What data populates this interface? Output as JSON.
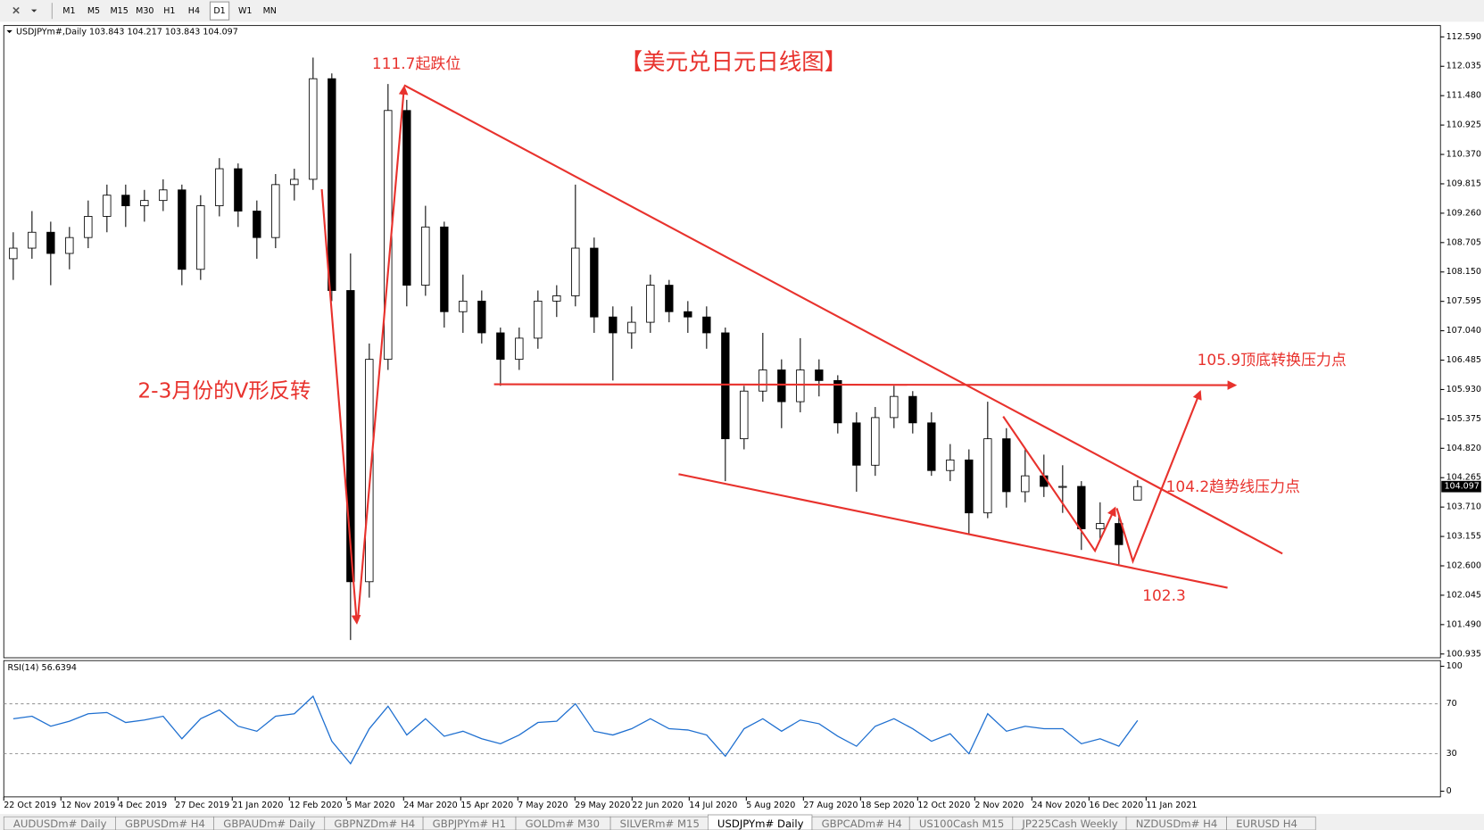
{
  "toolbar": {
    "timeframes": [
      "M1",
      "M5",
      "M15",
      "M30",
      "H1",
      "H4",
      "D1",
      "W1",
      "MN"
    ],
    "active": 6
  },
  "chart_data": {
    "type": "candlestick",
    "header": "USDJPYm#,Daily  103.843 104.217 103.843 104.097",
    "ylim": [
      100.864,
      112.804
    ],
    "yticks": [
      {
        "value": 112.59,
        "label": "112.590"
      },
      {
        "value": 112.035,
        "label": "112.035"
      },
      {
        "value": 111.48,
        "label": "111.480"
      },
      {
        "value": 110.925,
        "label": "110.925"
      },
      {
        "value": 110.37,
        "label": "110.370"
      },
      {
        "value": 109.815,
        "label": "109.815"
      },
      {
        "value": 109.26,
        "label": "109.260"
      },
      {
        "value": 108.705,
        "label": "108.705"
      },
      {
        "value": 108.15,
        "label": "108.150"
      },
      {
        "value": 107.595,
        "label": "107.595"
      },
      {
        "value": 107.04,
        "label": "107.040"
      },
      {
        "value": 106.485,
        "label": "106.485"
      },
      {
        "value": 105.93,
        "label": "105.930"
      },
      {
        "value": 105.375,
        "label": "105.375"
      },
      {
        "value": 104.82,
        "label": "104.820"
      },
      {
        "value": 104.265,
        "label": "104.265"
      },
      {
        "value": 103.71,
        "label": "103.710"
      },
      {
        "value": 103.155,
        "label": "103.155"
      },
      {
        "value": 102.6,
        "label": "102.600"
      },
      {
        "value": 102.045,
        "label": "102.045"
      },
      {
        "value": 101.49,
        "label": "101.490"
      },
      {
        "value": 100.935,
        "label": "100.935"
      }
    ],
    "current_price": "104.097",
    "candles": [
      [
        108.4,
        108.9,
        108.0,
        108.6
      ],
      [
        108.6,
        109.3,
        108.4,
        108.9
      ],
      [
        108.9,
        109.1,
        107.9,
        108.5
      ],
      [
        108.5,
        109.0,
        108.2,
        108.8
      ],
      [
        108.8,
        109.5,
        108.6,
        109.2
      ],
      [
        109.2,
        109.8,
        108.9,
        109.6
      ],
      [
        109.6,
        109.8,
        109.0,
        109.4
      ],
      [
        109.4,
        109.7,
        109.1,
        109.5
      ],
      [
        109.5,
        109.9,
        109.3,
        109.7
      ],
      [
        109.7,
        109.8,
        107.9,
        108.2
      ],
      [
        108.2,
        109.6,
        108.0,
        109.4
      ],
      [
        109.4,
        110.3,
        109.2,
        110.1
      ],
      [
        110.1,
        110.2,
        109.0,
        109.3
      ],
      [
        109.3,
        109.5,
        108.4,
        108.8
      ],
      [
        108.8,
        110.0,
        108.6,
        109.8
      ],
      [
        109.8,
        110.1,
        109.5,
        109.9
      ],
      [
        109.9,
        112.2,
        109.7,
        111.8
      ],
      [
        111.8,
        111.9,
        107.6,
        107.8
      ],
      [
        107.8,
        108.5,
        101.2,
        102.3
      ],
      [
        102.3,
        106.8,
        102.0,
        106.5
      ],
      [
        106.5,
        111.7,
        106.3,
        111.2
      ],
      [
        111.2,
        111.4,
        107.5,
        107.9
      ],
      [
        107.9,
        109.4,
        107.7,
        109.0
      ],
      [
        109.0,
        109.1,
        107.1,
        107.4
      ],
      [
        107.4,
        108.1,
        107.0,
        107.6
      ],
      [
        107.6,
        107.8,
        106.8,
        107.0
      ],
      [
        107.0,
        107.1,
        106.0,
        106.5
      ],
      [
        106.5,
        107.1,
        106.3,
        106.9
      ],
      [
        106.9,
        107.8,
        106.7,
        107.6
      ],
      [
        107.6,
        107.9,
        107.3,
        107.7
      ],
      [
        107.7,
        109.8,
        107.5,
        108.6
      ],
      [
        108.6,
        108.8,
        107.0,
        107.3
      ],
      [
        107.3,
        107.5,
        106.1,
        107.0
      ],
      [
        107.0,
        107.5,
        106.7,
        107.2
      ],
      [
        107.2,
        108.1,
        107.0,
        107.9
      ],
      [
        107.9,
        108.0,
        107.2,
        107.4
      ],
      [
        107.4,
        107.6,
        107.0,
        107.3
      ],
      [
        107.3,
        107.5,
        106.7,
        107.0
      ],
      [
        107.0,
        107.1,
        104.2,
        105.0
      ],
      [
        105.0,
        106.0,
        104.8,
        105.9
      ],
      [
        105.9,
        107.0,
        105.7,
        106.3
      ],
      [
        106.3,
        106.5,
        105.2,
        105.7
      ],
      [
        105.7,
        106.9,
        105.5,
        106.3
      ],
      [
        106.3,
        106.5,
        105.8,
        106.1
      ],
      [
        106.1,
        106.2,
        105.1,
        105.3
      ],
      [
        105.3,
        105.5,
        104.0,
        104.5
      ],
      [
        104.5,
        105.6,
        104.3,
        105.4
      ],
      [
        105.4,
        106.0,
        105.2,
        105.8
      ],
      [
        105.8,
        105.9,
        105.1,
        105.3
      ],
      [
        105.3,
        105.5,
        104.3,
        104.4
      ],
      [
        104.4,
        104.9,
        104.2,
        104.6
      ],
      [
        104.6,
        104.8,
        103.2,
        103.6
      ],
      [
        103.6,
        105.7,
        103.5,
        105.0
      ],
      [
        105.0,
        105.2,
        103.7,
        104.0
      ],
      [
        104.0,
        104.8,
        103.8,
        104.3
      ],
      [
        104.3,
        104.7,
        103.9,
        104.1
      ],
      [
        104.1,
        104.5,
        103.6,
        104.1
      ],
      [
        104.1,
        104.2,
        102.9,
        103.3
      ],
      [
        103.3,
        103.8,
        103.1,
        103.4
      ],
      [
        103.4,
        103.6,
        102.6,
        103.0
      ],
      [
        103.843,
        104.217,
        103.843,
        104.097
      ]
    ],
    "date_labels": [
      "22 Oct 2019",
      "12 Nov 2019",
      "4 Dec 2019",
      "27 Dec 2019",
      "21 Jan 2020",
      "12 Feb 2020",
      "5 Mar 2020",
      "24 Mar 2020",
      "15 Apr 2020",
      "7 May 2020",
      "29 May 2020",
      "22 Jun 2020",
      "14 Jul 2020",
      "5 Aug 2020",
      "27 Aug 2020",
      "18 Sep 2020",
      "12 Oct 2020",
      "2 Nov 2020",
      "24 Nov 2020",
      "16 Dec 2020",
      "11 Jan 2021"
    ],
    "annotations": {
      "title": "【美元兑日元日线图】",
      "peak": "111.7起跌位",
      "v_reversal": "2-3月份的V形反转",
      "resistance": "105.9顶底转换压力点",
      "trendline": "104.2趋势线压力点",
      "low": "102.3"
    },
    "rsi": {
      "label": "RSI(14) 56.6394",
      "ylim": [
        0,
        100
      ],
      "yticks": [
        100,
        70,
        30,
        0
      ],
      "color": "#1e6fd0",
      "values": [
        58,
        60,
        52,
        56,
        62,
        63,
        55,
        57,
        60,
        42,
        58,
        65,
        52,
        48,
        60,
        62,
        76,
        40,
        22,
        50,
        68,
        45,
        58,
        44,
        48,
        42,
        38,
        45,
        55,
        56,
        70,
        48,
        45,
        50,
        58,
        50,
        49,
        45,
        28,
        50,
        58,
        48,
        57,
        54,
        44,
        36,
        52,
        58,
        50,
        40,
        46,
        30,
        62,
        48,
        52,
        50,
        50,
        38,
        42,
        36,
        56.6394
      ]
    }
  },
  "tabs": [
    "AUDUSDm# Daily",
    "GBPUSDm# H4",
    "GBPAUDm# Daily",
    "GBPNZDm# H4",
    "GBPJPYm# H1",
    "GOLDm# M30",
    "SILVERm# M15",
    "USDJPYm# Daily",
    "GBPCADm# H4",
    "US100Cash M15",
    "JP225Cash Weekly",
    "NZDUSDm# H4",
    "EURUSD H4"
  ],
  "active_tab": 7
}
